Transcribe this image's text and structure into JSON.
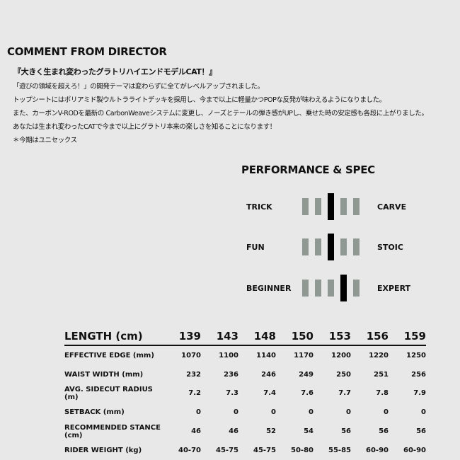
{
  "comment": {
    "heading": "COMMENT FROM DIRECTOR",
    "lines": [
      "『大きく生まれ変わったグラトリハイエンドモデルCAT！』",
      "「遊びの領域を超えろ！」の開発テーマは変わらずに全てがレベルアップされました。",
      "トップシートにはポリアミド製ウルトラライトデッキを採用し、今まで以上に軽量かつPOPな反発が味わえるようになりました。",
      "また、カーボンV-RODを最新の CarbonWeaveシステムに変更し、ノーズとテールの弾き感がUPし、乗せた時の安定感も各段に上がりました。",
      "あなたは生まれ変わったCATで今まで以上にグラトリ本来の楽しさを知ることになります！",
      "＊今期はユニセックス"
    ]
  },
  "performance": {
    "heading": "PERFORMANCE & SPEC",
    "scales": [
      {
        "left": "TRICK",
        "right": "CARVE",
        "level": 3,
        "of": 5
      },
      {
        "left": "FUN",
        "right": "STOIC",
        "level": 3,
        "of": 5
      },
      {
        "left": "BEGINNER",
        "right": "EXPERT",
        "level": 4,
        "of": 5
      }
    ],
    "colors": {
      "active": "#000000",
      "inactive": "#8f9893"
    }
  },
  "spec": {
    "header": [
      "LENGTH (cm)",
      "139",
      "143",
      "148",
      "150",
      "153",
      "156",
      "159"
    ],
    "rows": [
      [
        "EFFECTIVE EDGE (mm)",
        "1070",
        "1100",
        "1140",
        "1170",
        "1200",
        "1220",
        "1250"
      ],
      [
        "WAIST WIDTH (mm)",
        "232",
        "236",
        "246",
        "249",
        "250",
        "251",
        "256"
      ],
      [
        "AVG. SIDECUT RADIUS (m)",
        "7.2",
        "7.3",
        "7.4",
        "7.6",
        "7.7",
        "7.8",
        "7.9"
      ],
      [
        "SETBACK (mm)",
        "0",
        "0",
        "0",
        "0",
        "0",
        "0",
        "0"
      ],
      [
        "RECOMMENDED STANCE (cm)",
        "46",
        "46",
        "52",
        "54",
        "56",
        "56",
        "56"
      ],
      [
        "RIDER WEIGHT (kg)",
        "40-70",
        "45-75",
        "45-75",
        "50-80",
        "55-85",
        "60-90",
        "60-90"
      ]
    ]
  }
}
